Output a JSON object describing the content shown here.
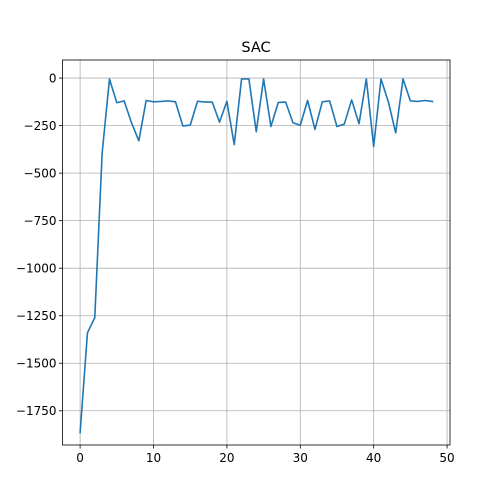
{
  "chart_data": {
    "type": "line",
    "title": "SAC",
    "xlabel": "",
    "ylabel": "",
    "xlim": [
      -2.4,
      50.4
    ],
    "ylim": [
      -1930,
      95
    ],
    "x_ticks": [
      0,
      10,
      20,
      30,
      40,
      50
    ],
    "y_ticks": [
      0,
      -250,
      -500,
      -750,
      -1000,
      -1250,
      -1500,
      -1750
    ],
    "grid": true,
    "legend": "none",
    "series": [
      {
        "color": "#1f77b4",
        "x": [
          0,
          1,
          2,
          3,
          4,
          5,
          6,
          7,
          8,
          9,
          10,
          11,
          12,
          13,
          14,
          15,
          16,
          17,
          18,
          19,
          20,
          21,
          22,
          23,
          24,
          25,
          26,
          27,
          28,
          29,
          30,
          31,
          32,
          33,
          34,
          35,
          36,
          37,
          38,
          39,
          40,
          41,
          42,
          43,
          44,
          45,
          46,
          47,
          48
        ],
        "values": [
          -1865,
          -1340,
          -1260,
          -395,
          -5,
          -130,
          -120,
          -235,
          -330,
          -118,
          -125,
          -123,
          -120,
          -125,
          -252,
          -248,
          -122,
          -126,
          -126,
          -232,
          -122,
          -350,
          -5,
          -5,
          -282,
          -5,
          -255,
          -128,
          -126,
          -235,
          -248,
          -118,
          -270,
          -125,
          -120,
          -255,
          -242,
          -115,
          -240,
          -5,
          -360,
          -5,
          -125,
          -288,
          -5,
          -120,
          -123,
          -118,
          -123
        ]
      }
    ]
  }
}
